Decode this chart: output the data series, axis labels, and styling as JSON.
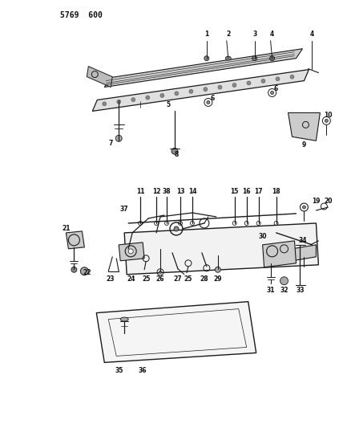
{
  "title": "5769  600",
  "bg_color": "#ffffff",
  "line_color": "#1a1a1a",
  "text_color": "#111111",
  "fig_width": 4.28,
  "fig_height": 5.33,
  "dpi": 100
}
